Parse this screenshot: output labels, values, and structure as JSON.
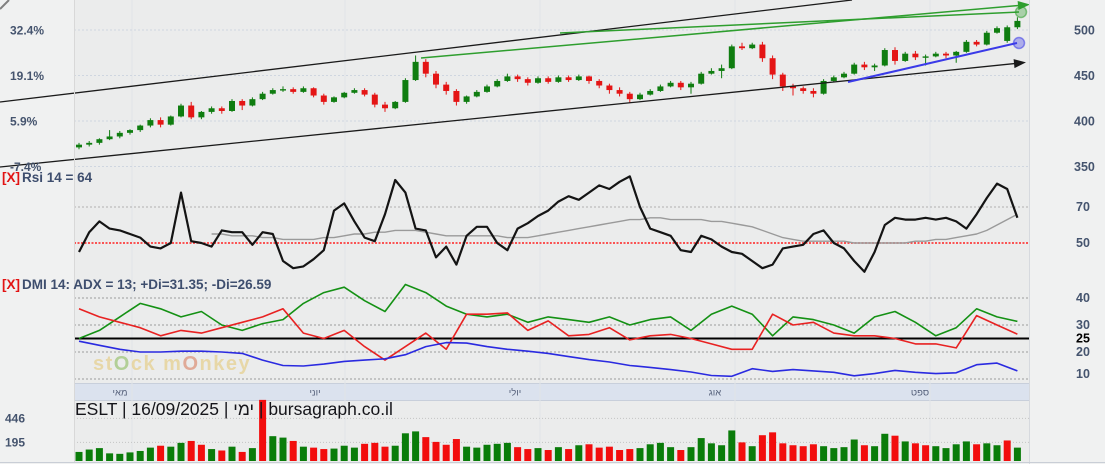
{
  "title": "ESLT | 16/09/2025 | ימי | bursagraph.co.il",
  "watermark": {
    "p1": "st",
    "o1": "O",
    "p2": "ck m",
    "o2": "O",
    "p3": "nkey"
  },
  "rsi_panel": {
    "close": "[X]",
    "label": "Rsi 14 = 64"
  },
  "dmi_panel": {
    "close": "[X]",
    "label": "DMI 14: ADX = 13; +Di=31.35; -Di=26.59"
  },
  "colors": {
    "candle_up": "#0f7d10",
    "candle_down": "#e41515",
    "volume_up": "#0a7c0a",
    "volume_down": "#f20d0d",
    "rsi": "#141414",
    "rsi_ma": "#9a9a9a",
    "rsi_mid": "#ff2020",
    "dmi_plus": "#149114",
    "dmi_minus": "#e82222",
    "dmi_adx": "#2a2ae0",
    "trend_green": "#2e9e2e",
    "trend_blue": "#3a3ae8",
    "channel": "#1a1a1a",
    "band_bg": "#dbe2ee",
    "plot_bg": "#ebecec",
    "page_bg": "#f0f1f1",
    "axis_text": "#45546e",
    "grid_price": "#cfd6e0",
    "grid_dots": "#9b9b9b",
    "grid_vol": "#c4c4c4",
    "month_sep": "#e2e4e7"
  },
  "chart_data": [
    {
      "type": "candlestick",
      "name": "price",
      "y_ticks_right": [
        "500",
        "450",
        "400",
        "350"
      ],
      "y_tick_prices": [
        500,
        450,
        400,
        350
      ],
      "y_ticks_left": [
        "32.4%",
        "19.1%",
        "5.9%",
        "-7.4%"
      ],
      "x_month_labels": [
        "מאי",
        "יוני",
        "יולי",
        "אוג",
        "ספט"
      ],
      "candles": [
        [
          371,
          376,
          369,
          374
        ],
        [
          374,
          378,
          372,
          376
        ],
        [
          376,
          381,
          374,
          380
        ],
        [
          380,
          390,
          379,
          383
        ],
        [
          383,
          389,
          381,
          387
        ],
        [
          387,
          391,
          385,
          390
        ],
        [
          390,
          396,
          388,
          395
        ],
        [
          395,
          403,
          393,
          401
        ],
        [
          401,
          404,
          393,
          396
        ],
        [
          396,
          406,
          395,
          405
        ],
        [
          405,
          419,
          404,
          417
        ],
        [
          417,
          421,
          402,
          404
        ],
        [
          404,
          411,
          402,
          410
        ],
        [
          410,
          416,
          408,
          414
        ],
        [
          414,
          416,
          408,
          411
        ],
        [
          411,
          424,
          410,
          422
        ],
        [
          422,
          424,
          412,
          417
        ],
        [
          417,
          426,
          416,
          424
        ],
        [
          424,
          432,
          423,
          430
        ],
        [
          430,
          436,
          429,
          434
        ],
        [
          434,
          438,
          432,
          435
        ],
        [
          435,
          437,
          430,
          432
        ],
        [
          432,
          438,
          431,
          436
        ],
        [
          436,
          437,
          426,
          428
        ],
        [
          428,
          430,
          418,
          421
        ],
        [
          421,
          427,
          420,
          426
        ],
        [
          426,
          432,
          425,
          431
        ],
        [
          431,
          436,
          430,
          434
        ],
        [
          434,
          436,
          427,
          429
        ],
        [
          429,
          431,
          415,
          418
        ],
        [
          418,
          421,
          410,
          414
        ],
        [
          414,
          422,
          413,
          421
        ],
        [
          421,
          447,
          420,
          445
        ],
        [
          445,
          472,
          444,
          465
        ],
        [
          465,
          468,
          448,
          452
        ],
        [
          452,
          455,
          436,
          440
        ],
        [
          440,
          443,
          429,
          433
        ],
        [
          433,
          435,
          417,
          421
        ],
        [
          421,
          428,
          419,
          427
        ],
        [
          427,
          434,
          426,
          432
        ],
        [
          432,
          440,
          431,
          438
        ],
        [
          438,
          446,
          437,
          444
        ],
        [
          444,
          452,
          443,
          449
        ],
        [
          449,
          451,
          443,
          446
        ],
        [
          446,
          448,
          439,
          442
        ],
        [
          442,
          449,
          441,
          447
        ],
        [
          447,
          449,
          441,
          443
        ],
        [
          443,
          450,
          442,
          448
        ],
        [
          448,
          450,
          443,
          445
        ],
        [
          445,
          451,
          444,
          449
        ],
        [
          449,
          450,
          441,
          444
        ],
        [
          444,
          446,
          436,
          439
        ],
        [
          439,
          441,
          430,
          434
        ],
        [
          434,
          437,
          427,
          430
        ],
        [
          430,
          432,
          420,
          424
        ],
        [
          424,
          431,
          423,
          429
        ],
        [
          429,
          435,
          428,
          433
        ],
        [
          433,
          440,
          432,
          438
        ],
        [
          438,
          444,
          437,
          442
        ],
        [
          442,
          444,
          434,
          437
        ],
        [
          437,
          443,
          430,
          441
        ],
        [
          441,
          454,
          440,
          452
        ],
        [
          452,
          458,
          451,
          455
        ],
        [
          455,
          462,
          447,
          458
        ],
        [
          458,
          484,
          457,
          482
        ],
        [
          482,
          486,
          478,
          480
        ],
        [
          480,
          486,
          479,
          484
        ],
        [
          484,
          487,
          465,
          469
        ],
        [
          469,
          472,
          446,
          451
        ],
        [
          451,
          453,
          433,
          438
        ],
        [
          438,
          441,
          428,
          436
        ],
        [
          436,
          438,
          430,
          433
        ],
        [
          433,
          436,
          426,
          430
        ],
        [
          430,
          446,
          429,
          444
        ],
        [
          444,
          450,
          443,
          448
        ],
        [
          448,
          454,
          447,
          452
        ],
        [
          452,
          464,
          451,
          462
        ],
        [
          462,
          465,
          456,
          459
        ],
        [
          459,
          463,
          455,
          461
        ],
        [
          461,
          480,
          460,
          478
        ],
        [
          478,
          481,
          462,
          466
        ],
        [
          466,
          476,
          465,
          474
        ],
        [
          474,
          477,
          467,
          470
        ],
        [
          470,
          473,
          461,
          471
        ],
        [
          471,
          476,
          470,
          474
        ],
        [
          474,
          476,
          469,
          472
        ],
        [
          472,
          477,
          464,
          476
        ],
        [
          476,
          489,
          475,
          487
        ],
        [
          487,
          489,
          482,
          484
        ],
        [
          484,
          499,
          483,
          497
        ],
        [
          497,
          504,
          496,
          502
        ],
        [
          488,
          505,
          486,
          503
        ],
        [
          503,
          514,
          501,
          510
        ]
      ],
      "annotations": [
        {
          "name": "trend-channel-upper",
          "x1": 0,
          "y1": 102,
          "x2": 852,
          "y2": 0,
          "color": "channel",
          "w": 1.3
        },
        {
          "name": "trend-channel-lower",
          "x1": 0,
          "y1": 167,
          "x2": 1020,
          "y2": 63,
          "color": "channel",
          "w": 1.3,
          "end": "arrow"
        },
        {
          "name": "trendline-green-upper",
          "x1": 421,
          "y1": 58,
          "x2": 1024,
          "y2": 5,
          "color": "trend_green",
          "w": 1.5,
          "end": "arrow"
        },
        {
          "name": "trendline-green-lower",
          "x1": 560,
          "y1": 33,
          "x2": 1019,
          "y2": 12,
          "color": "trend_green",
          "w": 1.5,
          "end": "circle"
        },
        {
          "name": "trendline-blue",
          "x1": 848,
          "y1": 82,
          "x2": 1017,
          "y2": 43,
          "color": "trend_blue",
          "w": 2,
          "end": "circle"
        },
        {
          "name": "corner-mark",
          "x1": 0,
          "y1": 9,
          "x2": 9,
          "y2": 0,
          "color": "#808080",
          "w": 2
        }
      ]
    },
    {
      "type": "line",
      "name": "rsi",
      "label": "Rsi 14 = 64",
      "current": 64,
      "levels": [
        "70",
        "50"
      ],
      "level_values": [
        70,
        50
      ],
      "values": [
        45,
        56,
        62,
        58,
        57,
        55,
        53,
        48,
        47,
        50,
        78,
        51,
        50,
        48,
        57,
        56,
        56,
        49,
        56,
        55,
        40,
        36,
        37,
        41,
        46,
        68,
        72,
        62,
        53,
        51,
        66,
        85,
        78,
        58,
        57,
        42,
        48,
        38,
        54,
        59,
        59,
        50,
        46,
        58,
        61,
        65,
        68,
        73,
        76,
        74,
        78,
        82,
        80,
        84,
        87,
        70,
        58,
        56,
        54,
        46,
        45,
        54,
        52,
        48,
        45,
        44,
        40,
        36,
        38,
        47,
        48,
        49,
        55,
        57,
        50,
        47,
        40,
        34,
        45,
        60,
        64,
        63,
        63,
        64,
        63,
        64,
        62,
        58,
        66,
        75,
        83,
        80,
        64
      ],
      "ma": [
        null,
        null,
        null,
        null,
        null,
        null,
        null,
        null,
        null,
        null,
        null,
        null,
        null,
        55,
        55,
        54,
        54,
        54,
        53,
        53,
        52,
        52,
        52,
        52,
        53,
        53,
        54,
        55,
        55,
        56,
        56,
        57,
        57,
        57,
        56,
        55,
        54,
        54,
        54,
        54,
        54,
        54,
        53,
        53,
        53,
        54,
        55,
        56,
        57,
        58,
        59,
        60,
        61,
        62,
        63,
        63,
        64,
        64,
        63,
        63,
        63,
        63,
        62,
        62,
        61,
        60,
        59,
        57,
        55,
        53,
        52,
        51,
        51,
        51,
        51,
        51,
        50,
        50,
        50,
        50,
        50,
        50,
        51,
        51,
        52,
        52,
        53,
        54,
        55,
        57,
        60,
        63,
        66
      ]
    },
    {
      "type": "line",
      "name": "dmi",
      "label": "DMI 14: ADX = 13; +Di=31.35; -Di=26.59",
      "adx": 13,
      "plus_di": 31.35,
      "minus_di": 26.59,
      "levels": [
        "40",
        "30",
        "25",
        "20",
        "10"
      ],
      "level_values": [
        40,
        30,
        25,
        20,
        10
      ],
      "series": [
        {
          "name": "+Di",
          "color_key": "dmi_plus",
          "values": [
            25,
            28,
            33,
            38,
            36,
            33,
            35,
            30,
            28,
            30.5,
            32,
            38,
            42,
            44,
            39,
            35,
            45,
            42,
            37,
            34,
            33,
            34,
            31,
            33,
            32,
            31,
            33,
            30,
            32,
            33,
            28,
            34,
            37,
            34,
            26,
            33,
            32,
            30,
            27,
            33,
            35,
            31,
            26,
            29,
            36,
            33,
            31.35
          ]
        },
        {
          "name": "-Di",
          "color_key": "dmi_minus",
          "values": [
            36,
            33,
            31,
            29,
            26,
            28,
            27,
            29,
            31,
            33,
            36,
            27,
            25,
            28,
            22,
            17,
            22,
            27,
            21,
            34,
            34,
            34.5,
            28,
            31.5,
            26,
            26.5,
            29,
            24.5,
            26,
            26.5,
            25,
            23,
            21,
            21,
            34,
            30,
            31,
            27,
            26,
            26,
            25,
            23,
            23,
            21.5,
            33.5,
            30,
            26.59
          ]
        },
        {
          "name": "ADX",
          "color_key": "dmi_adx",
          "values": [
            24,
            22.5,
            21,
            20,
            20,
            20.3,
            20.3,
            20,
            19.5,
            17,
            15,
            14.8,
            15.5,
            16.5,
            17,
            17.5,
            19,
            22,
            23.5,
            23.3,
            22,
            21,
            20.3,
            19.5,
            18.3,
            17.2,
            16.3,
            15,
            14.3,
            13.5,
            12.6,
            11.3,
            11,
            13.8,
            12.8,
            13.5,
            13,
            12.5,
            11.2,
            12,
            13.2,
            12.5,
            12,
            12.3,
            15.3,
            15.9,
            13
          ]
        }
      ]
    },
    {
      "type": "bar",
      "name": "volume",
      "levels": [
        "446",
        "195"
      ],
      "level_values": [
        446,
        195
      ],
      "values": [
        95,
        120,
        135,
        80,
        75,
        90,
        105,
        140,
        160,
        150,
        190,
        210,
        170,
        125,
        110,
        150,
        95,
        135,
        640,
        260,
        245,
        210,
        150,
        140,
        125,
        130,
        160,
        140,
        180,
        190,
        150,
        160,
        290,
        310,
        250,
        200,
        170,
        230,
        150,
        140,
        170,
        180,
        190,
        145,
        125,
        135,
        115,
        145,
        125,
        165,
        175,
        140,
        150,
        115,
        125,
        135,
        175,
        190,
        145,
        115,
        145,
        240,
        185,
        165,
        320,
        195,
        155,
        270,
        300,
        185,
        165,
        155,
        175,
        155,
        135,
        145,
        225,
        165,
        155,
        285,
        265,
        205,
        185,
        165,
        155,
        135,
        175,
        205,
        175,
        185,
        165,
        215,
        140
      ],
      "bar_colors": "ggggggggrggrrgrgrgrggrgrrgggrrrgggrrrrgggggrrgrgrgrrrrrggggrgggggrgrrrrrrggggrggrgrrggggrggrg"
    }
  ]
}
